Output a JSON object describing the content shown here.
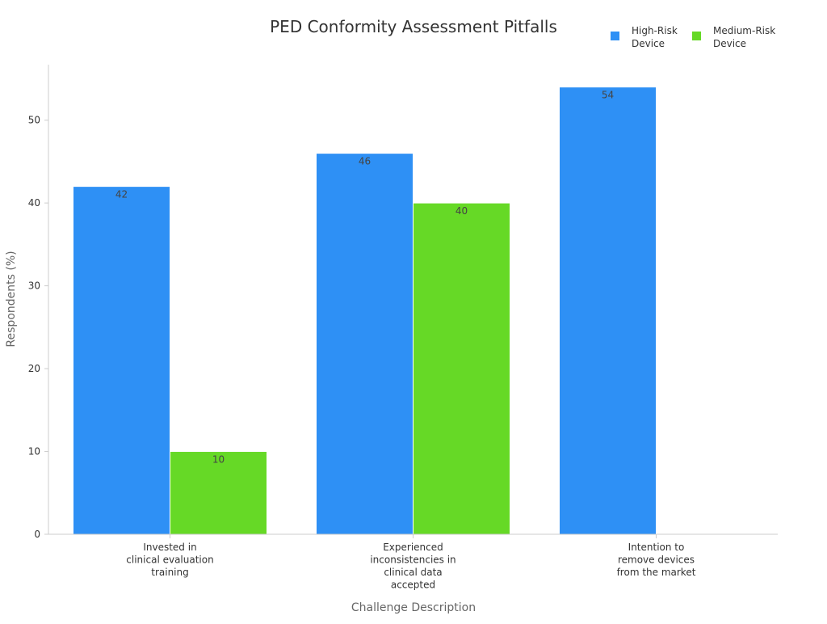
{
  "chart_data": {
    "type": "bar",
    "title": "PED Conformity Assessment Pitfalls",
    "xlabel": "Challenge Description",
    "ylabel": "Respondents (%)",
    "categories": [
      [
        "Invested in",
        "clinical evaluation",
        "training"
      ],
      [
        "Experienced",
        "inconsistencies in",
        "clinical data",
        "accepted"
      ],
      [
        "Intention to",
        "remove devices",
        "from the market"
      ]
    ],
    "series": [
      {
        "name": "High-Risk Device",
        "legend_lines": [
          "High-Risk",
          "Device"
        ],
        "color": "#2e90f5",
        "values": [
          42,
          46,
          54
        ]
      },
      {
        "name": "Medium-Risk Device",
        "legend_lines": [
          "Medium-Risk",
          "Device"
        ],
        "color": "#66d926",
        "values": [
          10,
          40,
          null
        ]
      }
    ],
    "ylim": [
      0,
      56.7
    ],
    "yticks": [
      0,
      10,
      20,
      30,
      40,
      50
    ],
    "grid": false,
    "legend_position": "top-right",
    "data_labels": true
  }
}
